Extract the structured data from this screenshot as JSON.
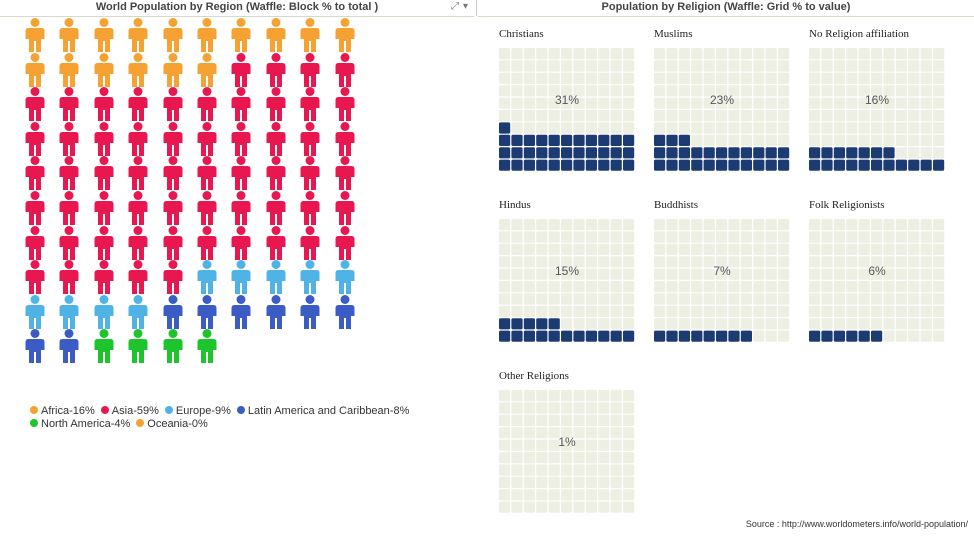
{
  "left_panel": {
    "title": "World Population by Region (Waffle: Block % to total )",
    "tools": {
      "expand_icon": "expand-icon",
      "menu_icon": "caret-down-icon"
    }
  },
  "right_panel": {
    "title": "Population by Religion (Waffle: Grid % to value)"
  },
  "source": "Source : http://www.worldometers.info/world-population/",
  "colors": {
    "Africa": "#f5a233",
    "Asia": "#e8174f",
    "Europe": "#4fb3e6",
    "Latin America and Caribbean": "#3a5cc4",
    "North America": "#1ec42b",
    "Oceania": "#f5a233",
    "filled_cell": "#1c3b73",
    "empty_cell": "#ecefe1"
  },
  "chart_data": [
    {
      "type": "waffle",
      "title": "World Population by Region (Waffle: Block % to total )",
      "columns": 10,
      "unit": "person-icon",
      "legend": [
        {
          "label": "Africa-16%",
          "region": "Africa",
          "icons": 16
        },
        {
          "label": "Asia-59%",
          "region": "Asia",
          "icons": 59
        },
        {
          "label": "Europe-9%",
          "region": "Europe",
          "icons": 9
        },
        {
          "label": "Latin America and Caribbean-8%",
          "region": "Latin America and Caribbean",
          "icons": 8
        },
        {
          "label": "North America-4%",
          "region": "North America",
          "icons": 4
        },
        {
          "label": "Oceania-0%",
          "region": "Oceania",
          "icons": 0
        }
      ]
    },
    {
      "type": "waffle-grid",
      "title": "Population by Religion (Waffle: Grid % to value)",
      "grid_columns": 11,
      "grid_rows": 10,
      "items": [
        {
          "name": "Christians",
          "label": "31%",
          "filled": 34
        },
        {
          "name": "Muslims",
          "label": "23%",
          "filled": 25
        },
        {
          "name": "No Religion affiliation",
          "label": "16%",
          "filled": 18
        },
        {
          "name": "Hindus",
          "label": "15%",
          "filled": 16
        },
        {
          "name": "Buddhists",
          "label": "7%",
          "filled": 8
        },
        {
          "name": "Folk Religionists",
          "label": "6%",
          "filled": 6
        },
        {
          "name": "Other Religions",
          "label": "1%",
          "filled": 0
        }
      ]
    }
  ]
}
